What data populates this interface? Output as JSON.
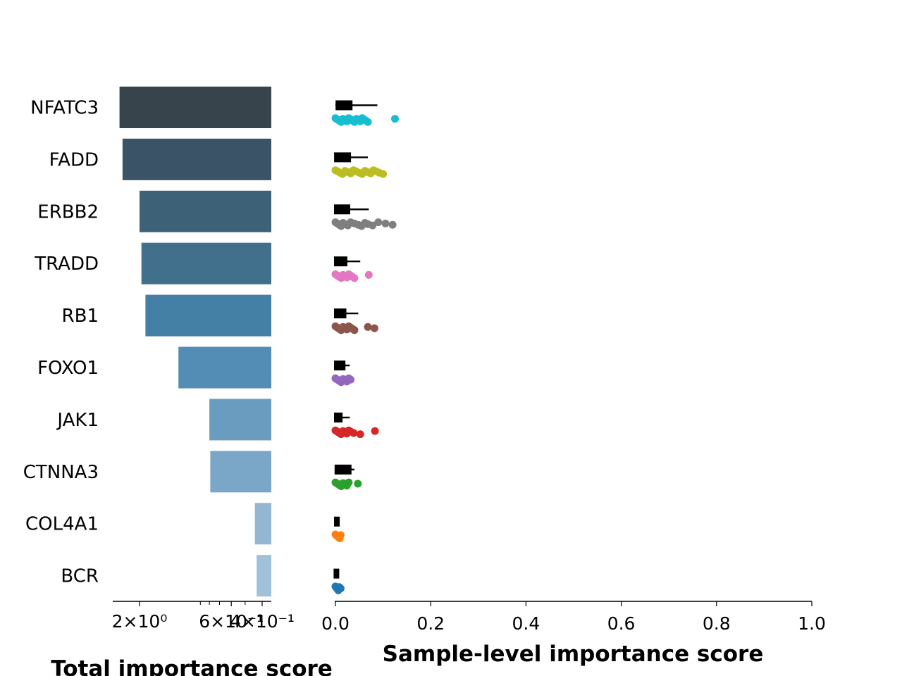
{
  "chart_data": [
    {
      "type": "bar",
      "orientation": "horizontal",
      "categories": [
        "NFATC3",
        "FADD",
        "ERBB2",
        "TRADD",
        "RB1",
        "FOXO1",
        "JAK1",
        "CTNNA3",
        "COL4A1",
        "BCR"
      ],
      "values": [
        2.6,
        2.5,
        2.0,
        1.95,
        1.85,
        1.2,
        0.8,
        0.79,
        0.44,
        0.43
      ],
      "xscale": "log",
      "xaxis_inverted": true,
      "xlim": [
        3.0,
        0.4
      ],
      "xticks": [
        {
          "value": 2,
          "label": "2×10⁰"
        },
        {
          "value": 0.6,
          "label": "6×10⁻¹"
        },
        {
          "value": 0.4,
          "label": "4×10⁻¹"
        }
      ],
      "xlabel": "Total importance score",
      "colors": [
        "#37444c",
        "#3a5366",
        "#3d6278",
        "#40708c",
        "#447fa6",
        "#538db6",
        "#6a9cc0",
        "#7aa7c7",
        "#93b6d3",
        "#9fc1d9"
      ]
    },
    {
      "type": "scatter",
      "xlim": [
        0.0,
        1.0
      ],
      "xticks": [
        "0.0",
        "0.2",
        "0.4",
        "0.6",
        "0.8",
        "1.0"
      ],
      "xlabel": "Sample-level importance score",
      "series": [
        {
          "category": "NFATC3",
          "color": "#17becf",
          "mean": 0.018,
          "whisker": 0.088,
          "points": [
            0.0,
            0.004,
            0.008,
            0.012,
            0.016,
            0.02,
            0.024,
            0.028,
            0.032,
            0.036,
            0.04,
            0.044,
            0.048,
            0.052,
            0.056,
            0.06,
            0.064,
            0.068,
            0.125
          ]
        },
        {
          "category": "FADD",
          "color": "#bcbd22",
          "mean": 0.015,
          "whisker": 0.068,
          "points": [
            0.0,
            0.005,
            0.01,
            0.015,
            0.02,
            0.026,
            0.032,
            0.038,
            0.044,
            0.05,
            0.056,
            0.062,
            0.068,
            0.074,
            0.08,
            0.086,
            0.092,
            0.1
          ]
        },
        {
          "category": "ERBB2",
          "color": "#7f7f7f",
          "mean": 0.014,
          "whisker": 0.07,
          "points": [
            0.0,
            0.004,
            0.008,
            0.012,
            0.016,
            0.02,
            0.026,
            0.032,
            0.04,
            0.048,
            0.055,
            0.062,
            0.068,
            0.078,
            0.09,
            0.105,
            0.12
          ]
        },
        {
          "category": "TRADD",
          "color": "#e377c2",
          "mean": 0.011,
          "whisker": 0.052,
          "points": [
            0.0,
            0.004,
            0.008,
            0.012,
            0.016,
            0.02,
            0.024,
            0.028,
            0.032,
            0.036,
            0.04,
            0.07
          ]
        },
        {
          "category": "RB1",
          "color": "#8c564b",
          "mean": 0.01,
          "whisker": 0.048,
          "points": [
            0.0,
            0.004,
            0.008,
            0.012,
            0.016,
            0.02,
            0.024,
            0.028,
            0.032,
            0.036,
            0.04,
            0.068,
            0.082
          ]
        },
        {
          "category": "FOXO1",
          "color": "#9467bd",
          "mean": 0.009,
          "whisker": 0.03,
          "points": [
            0.0,
            0.004,
            0.008,
            0.012,
            0.016,
            0.02,
            0.024,
            0.028,
            0.032
          ]
        },
        {
          "category": "JAK1",
          "color": "#d62728",
          "mean": 0.006,
          "whisker": 0.03,
          "points": [
            0.0,
            0.004,
            0.008,
            0.012,
            0.016,
            0.02,
            0.024,
            0.028,
            0.032,
            0.038,
            0.052,
            0.083
          ]
        },
        {
          "category": "CTNNA3",
          "color": "#2ca02c",
          "mean": 0.016,
          "whisker": 0.04,
          "points": [
            0.0,
            0.004,
            0.008,
            0.012,
            0.016,
            0.02,
            0.024,
            0.028,
            0.047
          ]
        },
        {
          "category": "COL4A1",
          "color": "#ff7f0e",
          "mean": 0.003,
          "whisker": 0.008,
          "points": [
            0.0,
            0.003,
            0.006,
            0.009,
            0.011
          ]
        },
        {
          "category": "BCR",
          "color": "#1f77b4",
          "mean": 0.002,
          "whisker": 0.006,
          "points": [
            0.0,
            0.002,
            0.004,
            0.006,
            0.008,
            0.011
          ]
        }
      ]
    }
  ]
}
